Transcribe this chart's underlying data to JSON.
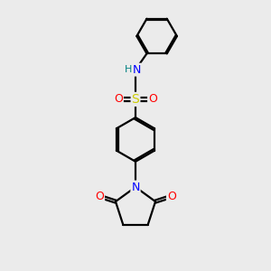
{
  "background_color": "#ebebeb",
  "bond_color": "#000000",
  "bond_width": 1.6,
  "atom_colors": {
    "N": "#0000ff",
    "O": "#ff0000",
    "S": "#cccc00",
    "H": "#008080",
    "C": "#000000"
  },
  "font_size_atoms": 9,
  "font_size_H": 8,
  "xlim": [
    -0.3,
    5.3
  ],
  "ylim": [
    0.0,
    10.0
  ]
}
